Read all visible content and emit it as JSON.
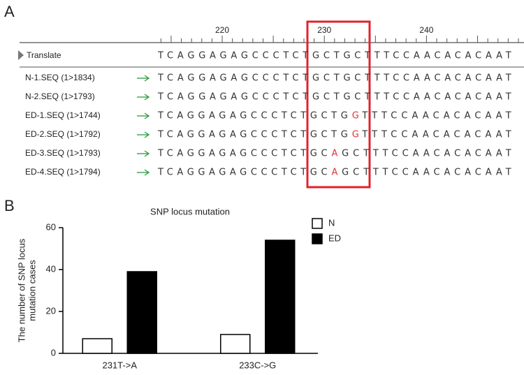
{
  "panel_a": {
    "label": "A",
    "ruler_labels": [
      "220",
      "230",
      "240"
    ],
    "translate": {
      "name": "Translate",
      "parts": [
        "TCAGGAGAGCCCTCTGCTGCTTTCCAACACACAAT"
      ]
    },
    "rows": [
      {
        "name": "N-1.SEQ (1>1834)",
        "parts": [
          "TCAGGAGAGCCCTCTGCTGCTTTCCAACACACAAT"
        ]
      },
      {
        "name": "N-2.SEQ (1>1793)",
        "parts": [
          "TCAGGAGAGCCCTCTGCTGCTTTCCAACACACAAT"
        ]
      },
      {
        "name": "ED-1.SEQ (1>1744)",
        "parts": [
          "TCAGGAGAGCCCTCTGCTG",
          "G",
          "TTTCCAACACACAAT"
        ]
      },
      {
        "name": "ED-2.SEQ (1>1792)",
        "parts": [
          "TCAGGAGAGCCCTCTGCTG",
          "G",
          "TTTCCAACACACAAT"
        ]
      },
      {
        "name": "ED-3.SEQ (1>1793)",
        "parts": [
          "TCAGGAGAGCCCTCTGC",
          "A",
          "GCTTTCCAACACACAAT"
        ]
      },
      {
        "name": "ED-4.SEQ (1>1794)",
        "parts": [
          "TCAGGAGAGCCCTCTGC",
          "A",
          "GCTTTCCAACACACAAT"
        ]
      }
    ]
  },
  "panel_b_label": "B",
  "chart_data": {
    "type": "bar",
    "title": "SNP locus mutation",
    "ylabel": [
      "The number of SNP locus",
      "mutation cases"
    ],
    "categories": [
      "231T->A",
      "233C->G"
    ],
    "series": [
      {
        "name": "N",
        "color": "#ffffff",
        "values": [
          7,
          9
        ]
      },
      {
        "name": "ED",
        "color": "#000000",
        "values": [
          39,
          54
        ]
      }
    ],
    "ylim": [
      0,
      60
    ],
    "yticks": [
      0,
      20,
      40,
      60
    ],
    "legend": "top-right"
  }
}
